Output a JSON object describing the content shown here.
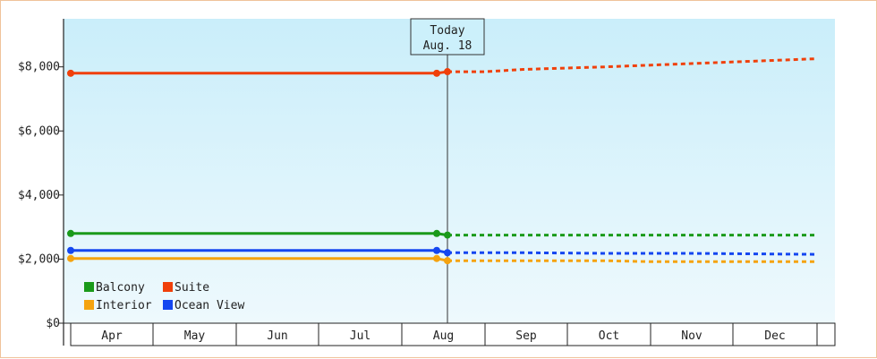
{
  "chart_data": {
    "type": "line",
    "ylim": [
      0,
      9500
    ],
    "y_ticks": [
      "$0",
      "$2,000",
      "$4,000",
      "$6,000",
      "$8,000"
    ],
    "y_tick_values": [
      0,
      2000,
      4000,
      6000,
      8000
    ],
    "months": [
      "Apr",
      "May",
      "Jun",
      "Jul",
      "Aug",
      "Sep",
      "Oct",
      "Nov",
      "Dec"
    ],
    "grid": false,
    "legend_position": "bottom-left",
    "today": {
      "line1": "Today",
      "line2": "Aug. 18"
    },
    "series": [
      {
        "name": "Balcony",
        "color": "#1a9a1a",
        "history": [
          [
            "Apr 1",
            2800
          ],
          [
            "Aug 14",
            2800
          ],
          [
            "Aug 18",
            2750
          ]
        ],
        "forecast": [
          [
            "Aug 18",
            2750
          ],
          [
            "Sep 15",
            2750
          ],
          [
            "Oct 15",
            2750
          ],
          [
            "Nov 15",
            2750
          ],
          [
            "Dec 31",
            2750
          ]
        ]
      },
      {
        "name": "Suite",
        "color": "#f0400a",
        "history": [
          [
            "Apr 1",
            7800
          ],
          [
            "Aug 14",
            7800
          ],
          [
            "Aug 18",
            7850
          ]
        ],
        "forecast": [
          [
            "Aug 18",
            7850
          ],
          [
            "Sep 1",
            7850
          ],
          [
            "Sep 15",
            7920
          ],
          [
            "Oct 15",
            8000
          ],
          [
            "Nov 15",
            8100
          ],
          [
            "Dec 31",
            8250
          ]
        ]
      },
      {
        "name": "Interior",
        "color": "#f5a30f",
        "history": [
          [
            "Apr 1",
            2020
          ],
          [
            "Aug 14",
            2020
          ],
          [
            "Aug 18",
            1950
          ]
        ],
        "forecast": [
          [
            "Aug 18",
            1950
          ],
          [
            "Sep 15",
            1950
          ],
          [
            "Oct 15",
            1950
          ],
          [
            "Nov 1",
            1920
          ],
          [
            "Dec 31",
            1920
          ]
        ]
      },
      {
        "name": "Ocean View",
        "color": "#1446f0",
        "history": [
          [
            "Apr 1",
            2270
          ],
          [
            "Aug 14",
            2270
          ],
          [
            "Aug 18",
            2200
          ]
        ],
        "forecast": [
          [
            "Aug 18",
            2200
          ],
          [
            "Sep 15",
            2200
          ],
          [
            "Oct 15",
            2180
          ],
          [
            "Nov 15",
            2180
          ],
          [
            "Dec 31",
            2150
          ]
        ]
      }
    ]
  }
}
